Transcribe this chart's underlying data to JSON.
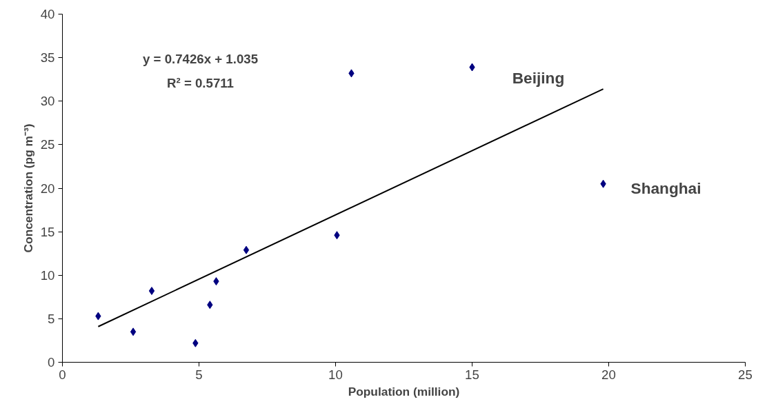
{
  "chart_data": {
    "type": "scatter",
    "xlabel": "Population (million)",
    "ylabel": "Concentration (pg m⁻³)",
    "xlim": [
      0,
      25
    ],
    "xticks": [
      0,
      5,
      10,
      15,
      20,
      25
    ],
    "ylim": [
      0,
      40
    ],
    "yticks": [
      0,
      5,
      10,
      15,
      20,
      25,
      30,
      35,
      40
    ],
    "grid": false,
    "series": [
      {
        "color": "#000080",
        "marker": "diamond",
        "x": [
          1.31,
          2.59,
          3.27,
          4.87,
          5.4,
          5.63,
          6.73,
          10.05,
          10.58,
          15.0,
          19.8
        ],
        "values": [
          5.3,
          3.5,
          8.2,
          2.2,
          6.6,
          9.3,
          12.9,
          14.6,
          33.2,
          33.9,
          20.5
        ]
      },
      {
        "type": "line",
        "color": "#000000",
        "x": [
          1.31,
          19.8
        ],
        "values": [
          4.1,
          31.4
        ]
      }
    ],
    "annotations": [
      "y = 0.7426x + 1.035",
      "R² = 0.5711",
      "Beijing",
      "Shanghai"
    ]
  }
}
